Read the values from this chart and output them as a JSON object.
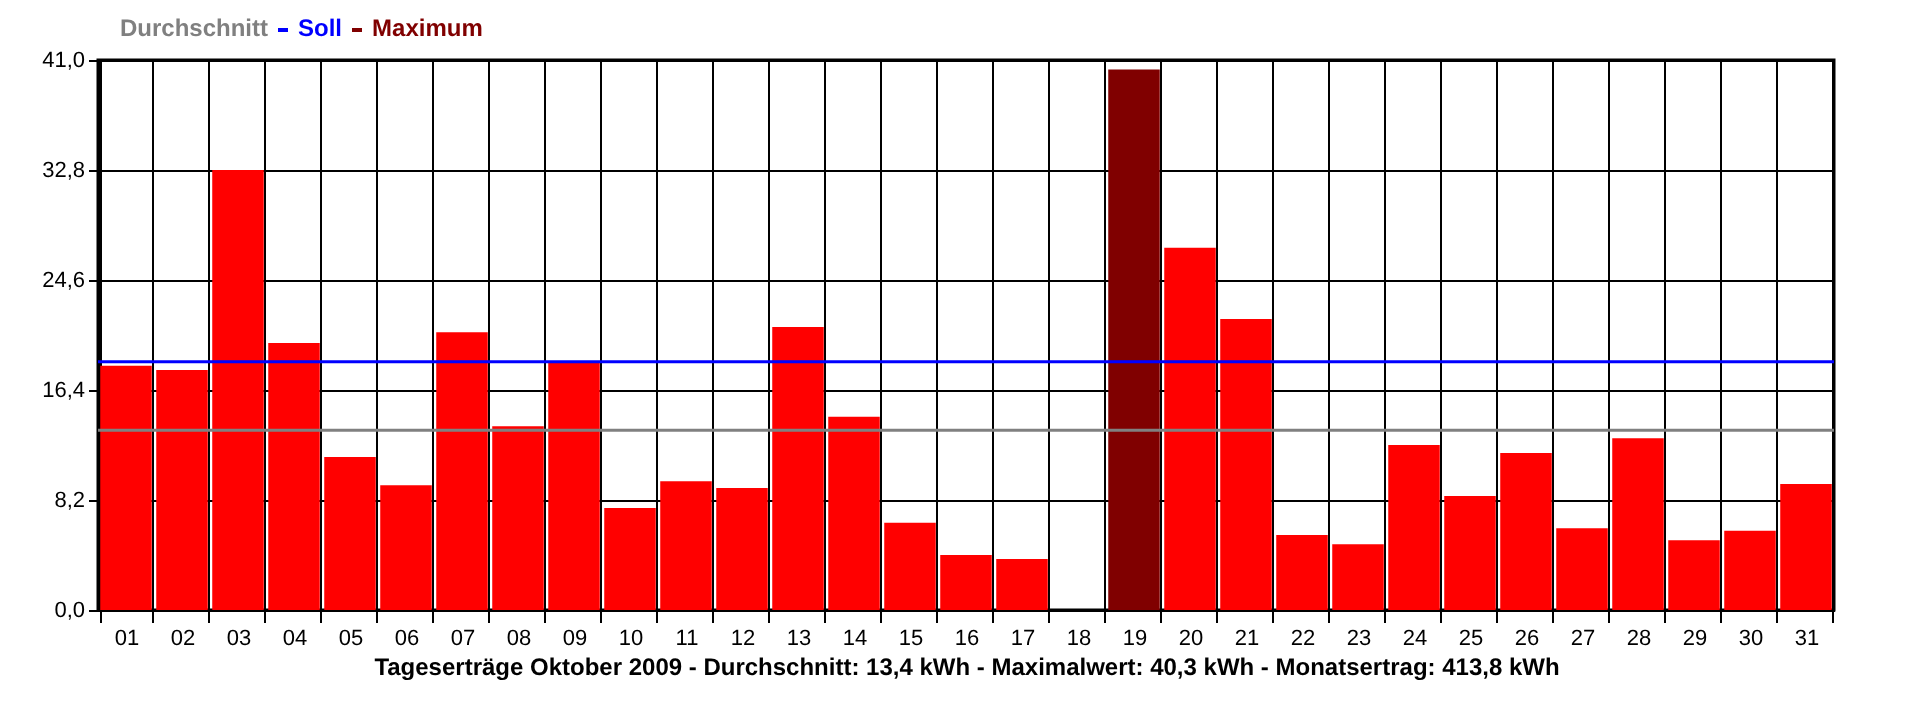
{
  "chart_data": {
    "type": "bar",
    "xlabel": "Tageserträge Oktober 2009 - Durchschnitt: 13,4 kWh - Maximalwert: 40,3 kWh - Monatsertrag: 413,8 kWh",
    "categories": [
      "01",
      "02",
      "03",
      "04",
      "05",
      "06",
      "07",
      "08",
      "09",
      "10",
      "11",
      "12",
      "13",
      "14",
      "15",
      "16",
      "17",
      "18",
      "19",
      "20",
      "21",
      "22",
      "23",
      "24",
      "25",
      "26",
      "27",
      "28",
      "29",
      "30",
      "31"
    ],
    "series": [
      {
        "color": "#ff0000",
        "values": [
          18.2,
          17.9,
          32.8,
          19.9,
          11.4,
          9.3,
          20.7,
          13.7,
          18.5,
          7.6,
          9.6,
          9.1,
          21.1,
          14.4,
          6.5,
          4.1,
          3.8,
          0,
          null,
          27.0,
          21.7,
          5.6,
          4.9,
          12.3,
          8.5,
          11.7,
          6.1,
          12.8,
          5.2,
          5.9,
          9.4
        ]
      },
      {
        "name": "Maximum",
        "color": "#800000",
        "values": [
          null,
          null,
          null,
          null,
          null,
          null,
          null,
          null,
          null,
          null,
          null,
          null,
          null,
          null,
          null,
          null,
          null,
          null,
          40.3,
          null,
          null,
          null,
          null,
          null,
          null,
          null,
          null,
          null,
          null,
          null,
          null
        ]
      }
    ],
    "ylim": [
      0,
      41
    ],
    "yticks": [
      {
        "value": 0,
        "label": "0,0"
      },
      {
        "value": 8.2,
        "label": "8,2"
      },
      {
        "value": 16.4,
        "label": "16,4"
      },
      {
        "value": 24.6,
        "label": "24,6"
      },
      {
        "value": 32.8,
        "label": "32,8"
      },
      {
        "value": 41,
        "label": "41,0"
      }
    ],
    "ref_lines": [
      {
        "axis": "y",
        "value": 13.4,
        "label": "Durchschnitt",
        "color": "#808080"
      },
      {
        "axis": "y",
        "value": 18.5,
        "label": "Soll",
        "color": "#0000ff"
      }
    ],
    "grid": true,
    "legend": "top left"
  }
}
